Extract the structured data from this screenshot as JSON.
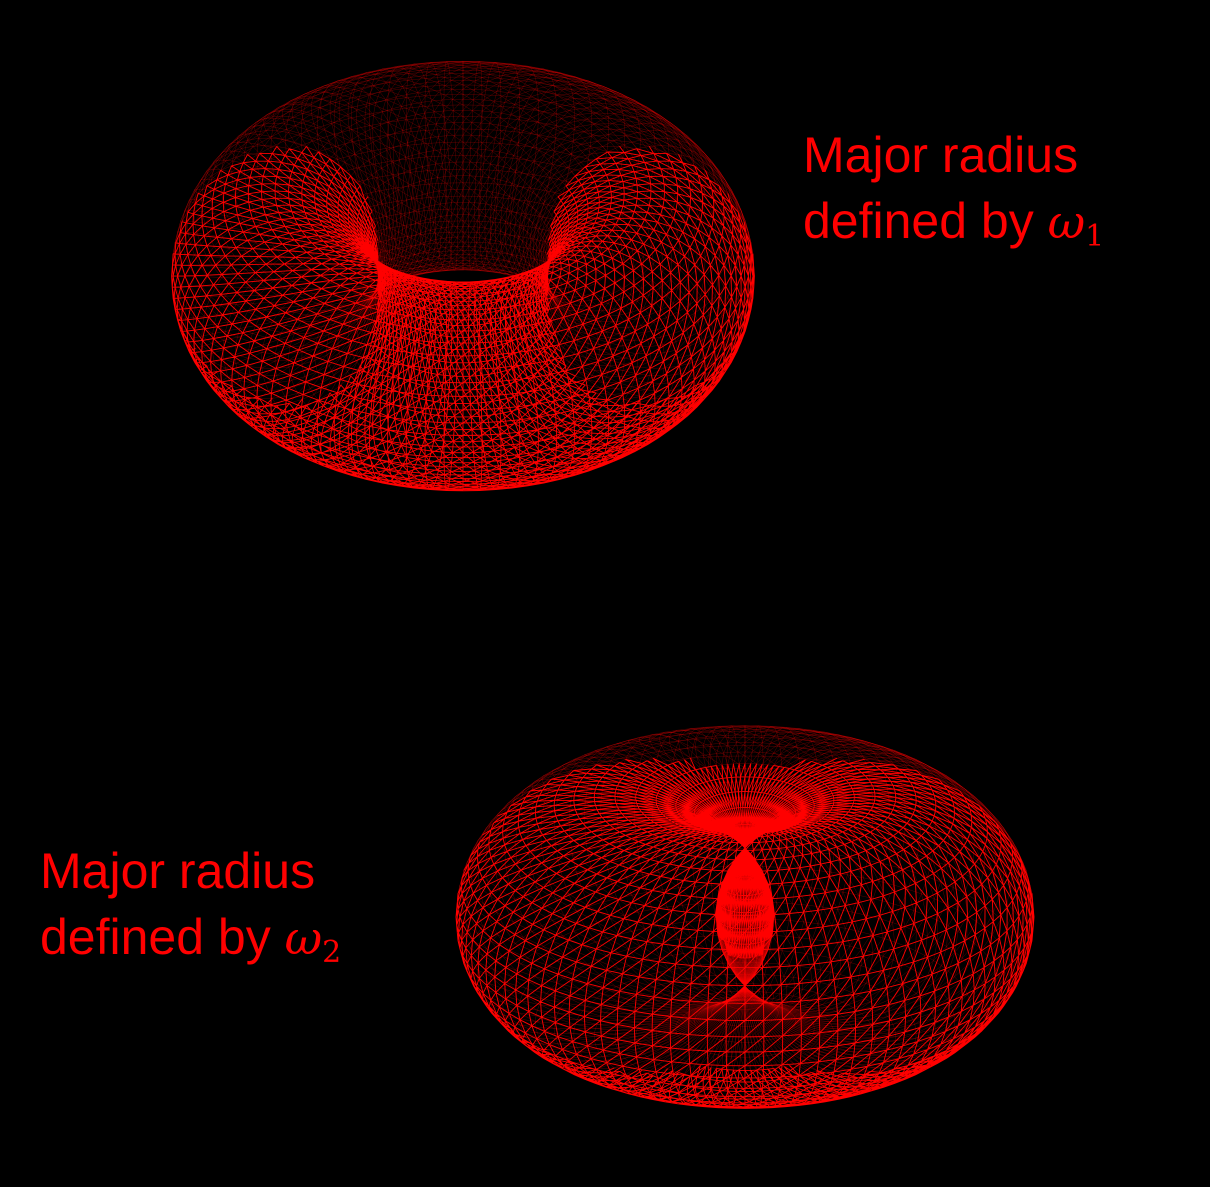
{
  "colors": {
    "background": "#000000",
    "mesh": "#ff0000",
    "text": "#ff0000"
  },
  "torus_1": {
    "label_line1": "Major radius",
    "label_line2_prefix": "defined by ",
    "symbol": "ω",
    "subscript": "1",
    "major_radius": 1.0,
    "minor_radius": 0.55
  },
  "torus_2": {
    "label_line1": "Major radius",
    "label_line2_prefix": "defined by ",
    "symbol": "ω",
    "subscript": "2",
    "major_radius": 0.45,
    "minor_radius": 0.55
  }
}
